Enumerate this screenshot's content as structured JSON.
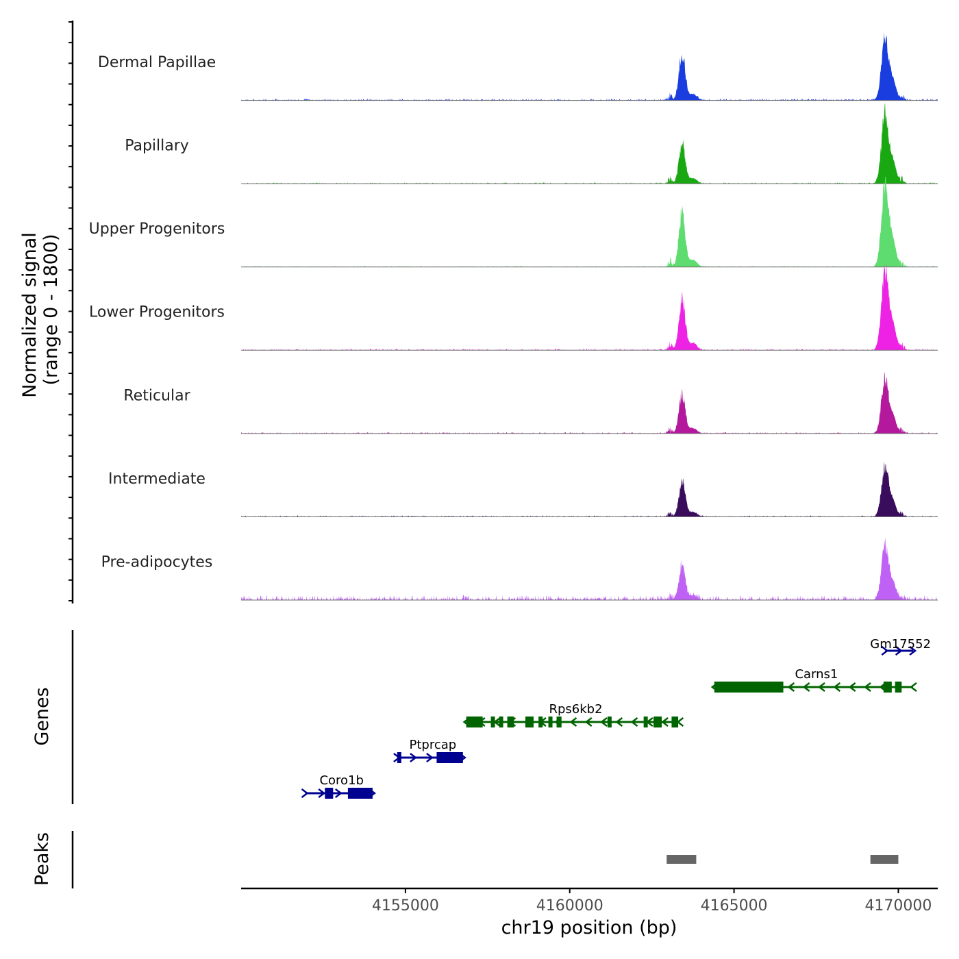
{
  "chart_data": {
    "type": "coverage-track",
    "xlabel": "chr19 position (bp)",
    "x_range": [
      4150000,
      4171200
    ],
    "x_ticks": [
      {
        "value": 4155000,
        "label": "4155000"
      },
      {
        "value": 4160000,
        "label": "4160000"
      },
      {
        "value": 4165000,
        "label": "4165000"
      },
      {
        "value": 4170000,
        "label": "4170000"
      }
    ],
    "coverage": {
      "ylabel_line1": "Normalized signal",
      "ylabel_line2": "(range 0 - 1800)",
      "ylim": [
        0,
        1800
      ],
      "tracks": [
        {
          "name": "Dermal Papillae",
          "color": "#1a3de0",
          "peak1": 1080,
          "peak2": 1500,
          "noise": 40
        },
        {
          "name": "Papillary",
          "color": "#19a812",
          "peak1": 950,
          "peak2": 1670,
          "noise": 30
        },
        {
          "name": "Upper Progenitors",
          "color": "#5edc70",
          "peak1": 1260,
          "peak2": 1980,
          "noise": 25
        },
        {
          "name": "Lower Progenitors",
          "color": "#ee22e4",
          "peak1": 1200,
          "peak2": 1940,
          "noise": 35
        },
        {
          "name": "Reticular",
          "color": "#b3189d",
          "peak1": 900,
          "peak2": 1320,
          "noise": 30
        },
        {
          "name": "Intermediate",
          "color": "#3a0c5c",
          "peak1": 860,
          "peak2": 1200,
          "noise": 30
        },
        {
          "name": "Pre-adipocytes",
          "color": "#c061f6",
          "peak1": 810,
          "peak2": 1270,
          "noise": 110
        }
      ]
    },
    "genes": {
      "ylabel": "Genes",
      "items": [
        {
          "name": "Gm17552",
          "strand": "+",
          "color": "#000090",
          "start": 4169600,
          "end": 4170450,
          "exons": []
        },
        {
          "name": "Carns1",
          "strand": "-",
          "color": "#006400",
          "start": 4164400,
          "end": 4170450,
          "exons": [
            [
              4164400,
              4166500
            ],
            [
              4169550,
              4169800
            ],
            [
              4169900,
              4170100
            ]
          ]
        },
        {
          "name": "Rps6kb2",
          "strand": "-",
          "color": "#006400",
          "start": 4156850,
          "end": 4163350,
          "exons": [
            [
              4156850,
              4157350
            ],
            [
              4157600,
              4157700
            ],
            [
              4157850,
              4157950
            ],
            [
              4158100,
              4158300
            ],
            [
              4158650,
              4158900
            ],
            [
              4159050,
              4159150
            ],
            [
              4159350,
              4159450
            ],
            [
              4159600,
              4159750
            ],
            [
              4161150,
              4161250
            ],
            [
              4162250,
              4162350
            ],
            [
              4162550,
              4162800
            ],
            [
              4163100,
              4163300
            ]
          ]
        },
        {
          "name": "Ptprcap",
          "strand": "+",
          "color": "#000090",
          "start": 4154750,
          "end": 4156750,
          "exons": [
            [
              4154750,
              4154850
            ],
            [
              4155950,
              4156750
            ]
          ]
        },
        {
          "name": "Coro1b",
          "strand": "+",
          "color": "#000090",
          "start": 4151950,
          "end": 4154000,
          "exons": [
            [
              4152550,
              4152800
            ],
            [
              4153250,
              4154000
            ]
          ]
        }
      ]
    },
    "peaks": {
      "ylabel": "Peaks",
      "color": "#666666",
      "regions": [
        [
          4162950,
          4163850
        ],
        [
          4169150,
          4170000
        ]
      ]
    }
  }
}
